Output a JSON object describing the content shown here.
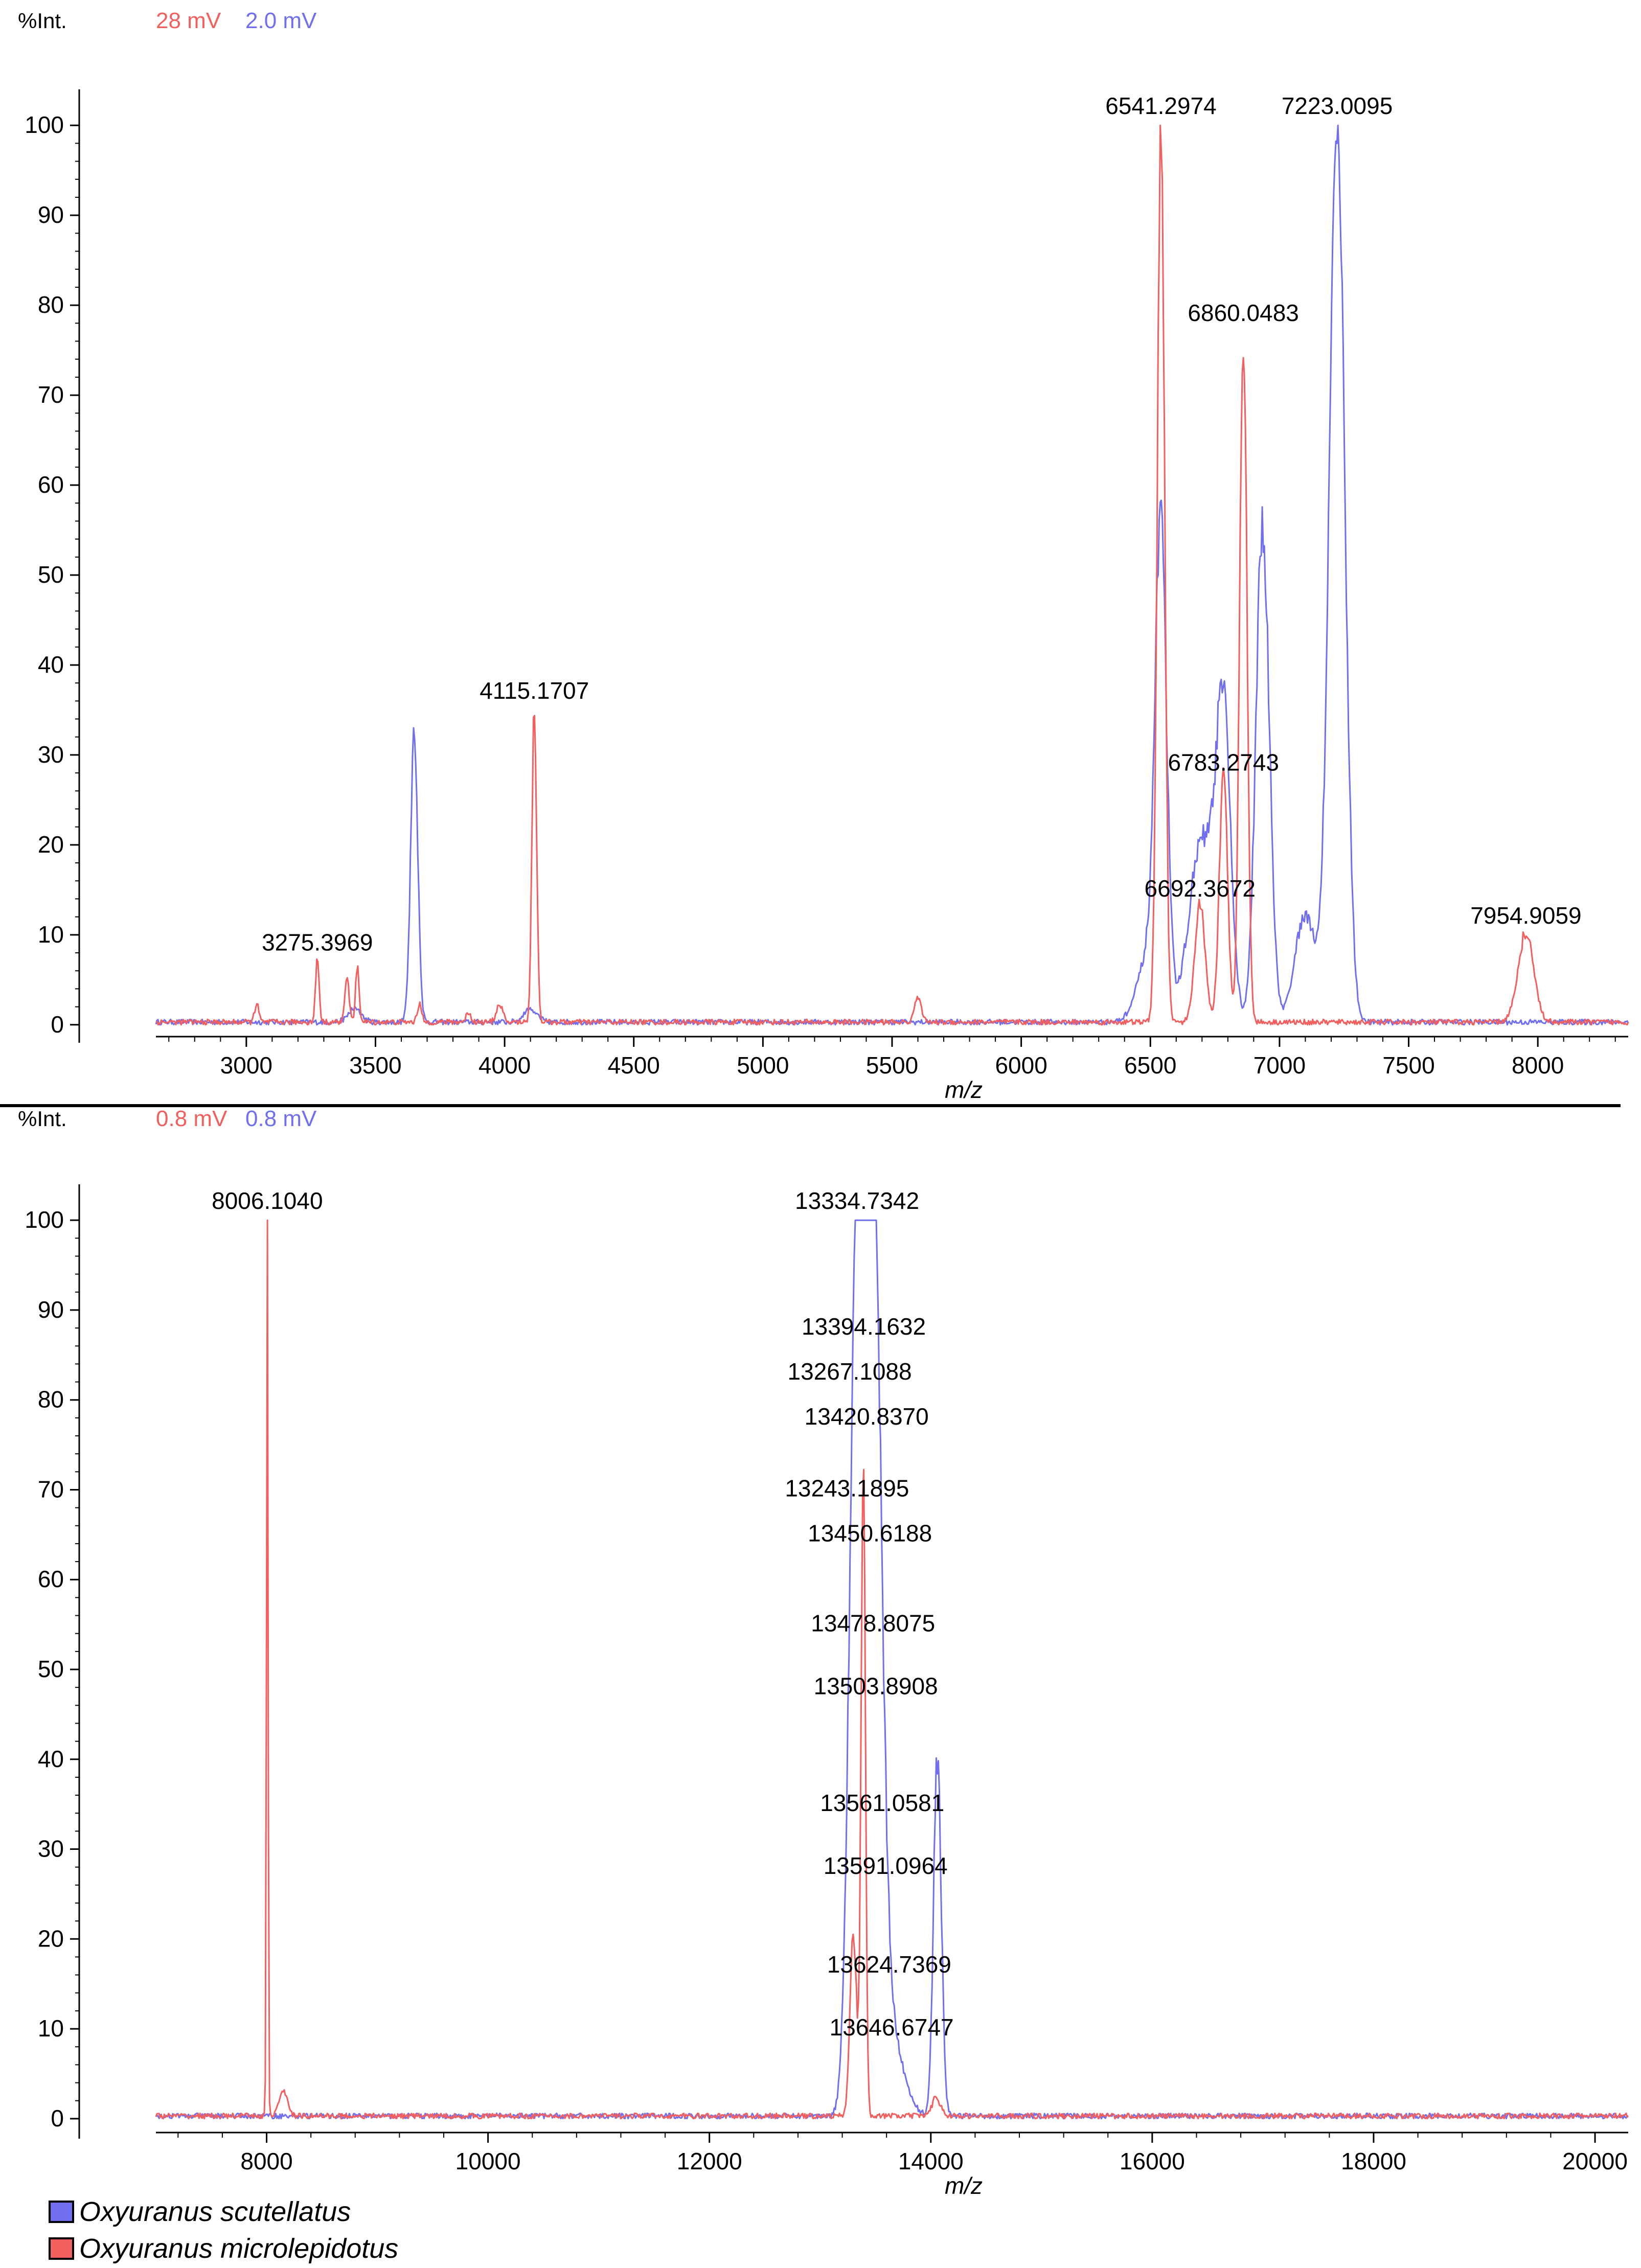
{
  "colors": {
    "blue": "#6f6ff0",
    "red": "#f25f5f",
    "axis": "#000000"
  },
  "legend": [
    {
      "label": "Oxyuranus scutellatus",
      "color": "#6f6ff0"
    },
    {
      "label": "Oxyuranus microlepidotus",
      "color": "#f25f5f"
    }
  ],
  "chart_data": [
    {
      "type": "line",
      "ylabel": "%Int.",
      "xlabel": "m/z",
      "xlim": [
        2650,
        8350
      ],
      "ylim": [
        -2,
        102
      ],
      "xticks": [
        3000,
        3500,
        4000,
        4500,
        5000,
        5500,
        6000,
        6500,
        7000,
        7500,
        8000
      ],
      "yticks": [
        0,
        10,
        20,
        30,
        40,
        50,
        60,
        70,
        80,
        90,
        100
      ],
      "intensity": {
        "red": "28 mV",
        "blue": "2.0 mV"
      },
      "series": [
        {
          "name": "Oxyuranus scutellatus",
          "color": "blue",
          "peaks": [
            [
              3420,
              1.5,
              25
            ],
            [
              3650,
              32,
              14
            ],
            [
              4100,
              1.5,
              25
            ],
            [
              6500,
              8,
              45
            ],
            [
              6541,
              50,
              22
            ],
            [
              6700,
              20,
              50
            ],
            [
              6783,
              32,
              28
            ],
            [
              6935,
              55,
              26
            ],
            [
              7100,
              12,
              40
            ],
            [
              7223,
              100,
              30
            ]
          ]
        },
        {
          "name": "Oxyuranus microlepidotus",
          "color": "red",
          "peaks": [
            [
              3040,
              2,
              8
            ],
            [
              3275,
              7,
              7
            ],
            [
              3390,
              5,
              8
            ],
            [
              3430,
              6,
              7
            ],
            [
              3670,
              2,
              8
            ],
            [
              3860,
              1,
              10
            ],
            [
              3980,
              2,
              12
            ],
            [
              4115,
              35,
              9
            ],
            [
              5600,
              3,
              12
            ],
            [
              6541,
              100,
              14
            ],
            [
              6692,
              13,
              20
            ],
            [
              6783,
              27,
              16
            ],
            [
              6860,
              77,
              14
            ],
            [
              7954,
              10,
              30
            ]
          ]
        }
      ],
      "annotations": [
        {
          "label": "3275.3969",
          "x": 3275,
          "y": 7
        },
        {
          "label": "4115.1707",
          "x": 4115,
          "y": 35
        },
        {
          "label": "6541.2974",
          "x": 6541,
          "y": 100
        },
        {
          "label": "7223.0095",
          "x": 7223,
          "y": 100
        },
        {
          "label": "6860.0483",
          "x": 6860,
          "y": 77
        },
        {
          "label": "6783.2743",
          "x": 6783,
          "y": 27
        },
        {
          "label": "6692.3672",
          "x": 6692,
          "y": 13
        },
        {
          "label": "7954.9059",
          "x": 7954,
          "y": 10
        }
      ]
    },
    {
      "type": "line",
      "ylabel": "%Int.",
      "xlabel": "m/z",
      "xlim": [
        7000,
        20300
      ],
      "ylim": [
        -2,
        102
      ],
      "xticks": [
        8000,
        10000,
        12000,
        14000,
        16000,
        18000,
        20000
      ],
      "yticks": [
        0,
        10,
        20,
        30,
        40,
        50,
        60,
        70,
        80,
        90,
        100
      ],
      "intensity": {
        "red": "0.8 mV",
        "blue": "0.8 mV"
      },
      "series": [
        {
          "name": "Oxyuranus scutellatus",
          "color": "blue",
          "peaks": [
            [
              13334,
              100,
              65
            ],
            [
              13450,
              60,
              60
            ],
            [
              13503,
              45,
              55
            ],
            [
              13560,
              18,
              60
            ],
            [
              13650,
              8,
              110
            ],
            [
              14060,
              40,
              35
            ]
          ]
        },
        {
          "name": "Oxyuranus microlepidotus",
          "color": "red",
          "peaks": [
            [
              8006,
              100,
              7
            ],
            [
              8150,
              3,
              35
            ],
            [
              13300,
              20,
              30
            ],
            [
              13390,
              70,
              20
            ],
            [
              14050,
              2,
              40
            ]
          ]
        }
      ],
      "annotations": [
        {
          "label": "8006.1040",
          "x": 8006,
          "y": 100
        },
        {
          "label": "13334.7342",
          "x": 13334,
          "y": 100
        },
        {
          "label": "13394.1632",
          "x": 13394,
          "y": 86
        },
        {
          "label": "13267.1088",
          "x": 13267,
          "y": 81
        },
        {
          "label": "13420.8370",
          "x": 13420,
          "y": 76
        },
        {
          "label": "13243.1895",
          "x": 13243,
          "y": 68
        },
        {
          "label": "13450.6188",
          "x": 13450,
          "y": 63
        },
        {
          "label": "13478.8075",
          "x": 13478,
          "y": 53
        },
        {
          "label": "13503.8908",
          "x": 13503,
          "y": 46
        },
        {
          "label": "13561.0581",
          "x": 13561,
          "y": 33
        },
        {
          "label": "13591.0964",
          "x": 13591,
          "y": 26
        },
        {
          "label": "13624.7369",
          "x": 13624,
          "y": 15
        },
        {
          "label": "13646.6747",
          "x": 13646,
          "y": 8
        }
      ]
    }
  ]
}
